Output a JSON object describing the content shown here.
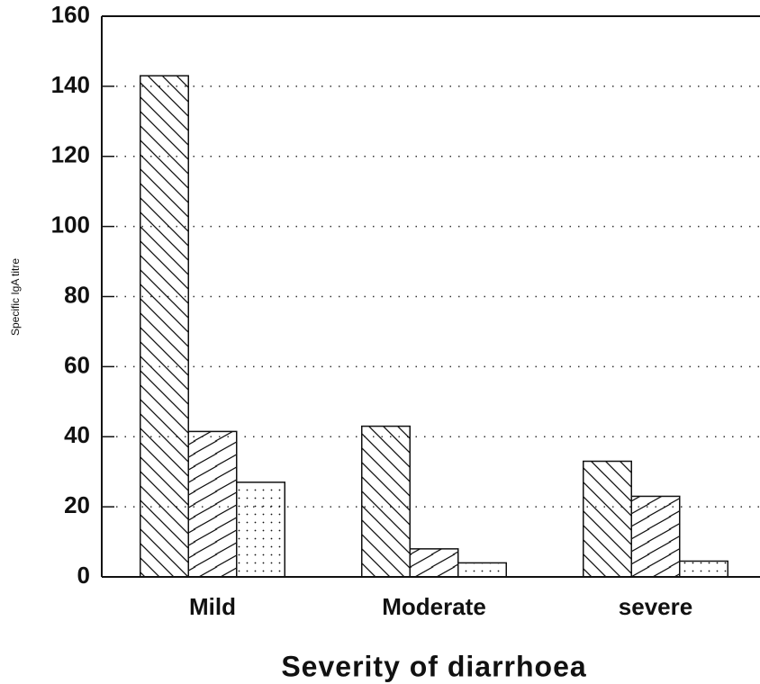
{
  "chart_data": {
    "type": "bar",
    "x_label": "Severity of diarrhoea",
    "y_label": "Specific IgA titre",
    "categories": [
      "Mild",
      "Moderate",
      "severe"
    ],
    "series": [
      {
        "pattern": "back-diagonal",
        "values": [
          143,
          43,
          33
        ]
      },
      {
        "pattern": "forward-diagonal",
        "values": [
          41.5,
          8,
          23
        ]
      },
      {
        "pattern": "dots",
        "values": [
          27,
          4,
          4.5
        ]
      }
    ],
    "ylim": [
      0,
      160
    ],
    "yticks": [
      0,
      20,
      40,
      60,
      80,
      100,
      120,
      140,
      160
    ],
    "grid": true
  }
}
